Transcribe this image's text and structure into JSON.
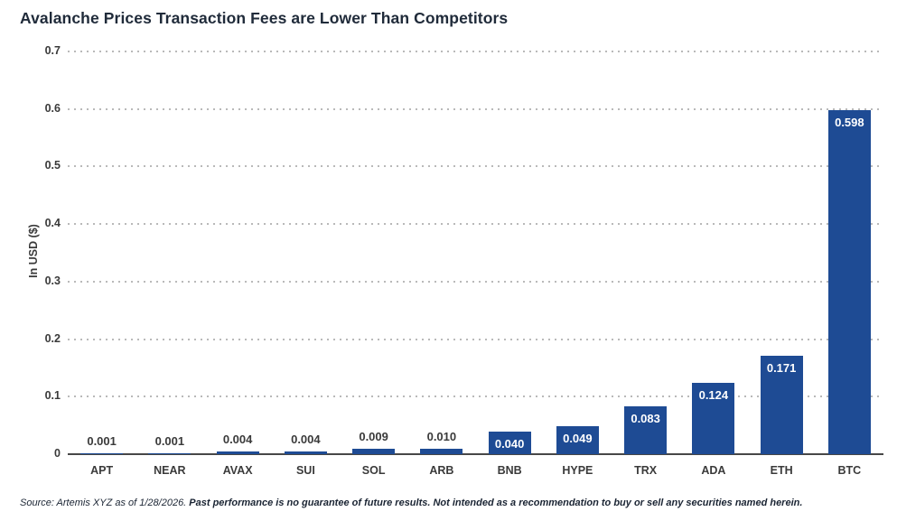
{
  "title": "Avalanche Prices Transaction Fees are Lower Than Competitors",
  "chart_data": {
    "type": "bar",
    "categories": [
      "APT",
      "NEAR",
      "AVAX",
      "SUI",
      "SOL",
      "ARB",
      "BNB",
      "HYPE",
      "TRX",
      "ADA",
      "ETH",
      "BTC"
    ],
    "values": [
      0.001,
      0.001,
      0.004,
      0.004,
      0.009,
      0.01,
      0.04,
      0.049,
      0.083,
      0.124,
      0.171,
      0.598
    ],
    "value_labels": [
      "0.001",
      "0.001",
      "0.004",
      "0.004",
      "0.009",
      "0.010",
      "0.040",
      "0.049",
      "0.083",
      "0.124",
      "0.171",
      "0.598"
    ],
    "title": "Avalanche Prices Transaction Fees are Lower Than Competitors",
    "xlabel": "",
    "ylabel": "In USD ($)",
    "ylim": [
      0,
      0.7
    ],
    "ytick_labels": [
      "0",
      "0.1",
      "0.2",
      "0.3",
      "0.4",
      "0.5",
      "0.6",
      "0.7"
    ],
    "grid": "dotted-horizontal",
    "legend": "none",
    "bar_color": "#1e4b94",
    "label_color_inside": "#ffffff",
    "label_color_above": "#3a3a3a"
  },
  "source": {
    "prefix": "Source: Artemis XYZ as of 1/28/2026. ",
    "disclaimer": "Past performance is no guarantee of future results. Not intended as a recommendation to buy or sell any securities named herein."
  }
}
